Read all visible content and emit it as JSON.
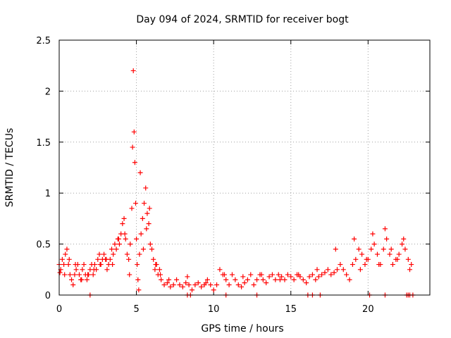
{
  "chart_data": {
    "type": "scatter",
    "title": "Day 094 of 2024, SRMTID for receiver bogt",
    "xlabel": "GPS time / hours",
    "ylabel": "SRMTID / TECUs",
    "xlim": [
      0,
      24
    ],
    "ylim": [
      0,
      2.5
    ],
    "xticks": [
      0,
      5,
      10,
      15,
      20
    ],
    "yticks": [
      0,
      0.5,
      1,
      1.5,
      2,
      2.5
    ],
    "xtick_labels": [
      "0",
      "5",
      "10",
      "15",
      "20"
    ],
    "ytick_labels": [
      "0",
      "0.5",
      "1",
      "1.5",
      "2",
      "2.5"
    ],
    "grid": true,
    "marker": "+",
    "color": "#ff0000",
    "series": [
      {
        "name": "SRMTID",
        "x": [
          0.0,
          0.1,
          0.2,
          0.3,
          0.4,
          0.5,
          0.6,
          0.7,
          0.8,
          0.9,
          1.0,
          1.1,
          1.2,
          1.3,
          1.4,
          1.5,
          1.6,
          1.7,
          1.8,
          1.9,
          2.0,
          2.1,
          2.2,
          2.3,
          2.4,
          2.5,
          2.6,
          2.7,
          2.8,
          2.9,
          3.0,
          3.1,
          3.2,
          3.3,
          3.4,
          3.5,
          3.6,
          3.7,
          3.8,
          3.9,
          4.0,
          4.1,
          4.2,
          4.3,
          4.4,
          4.5,
          4.6,
          4.7,
          4.75,
          4.8,
          4.85,
          4.9,
          4.95,
          5.0,
          5.05,
          5.1,
          5.15,
          5.2,
          5.3,
          5.4,
          5.5,
          5.6,
          5.7,
          5.8,
          5.9,
          6.0,
          6.1,
          6.2,
          6.3,
          6.4,
          6.5,
          6.6,
          6.8,
          7.0,
          7.2,
          7.4,
          7.6,
          7.8,
          8.0,
          8.2,
          8.4,
          8.6,
          8.8,
          9.0,
          9.2,
          9.4,
          9.6,
          9.8,
          10.0,
          10.2,
          10.4,
          10.6,
          10.8,
          11.0,
          11.2,
          11.4,
          11.6,
          11.8,
          12.0,
          12.2,
          12.4,
          12.6,
          12.8,
          13.0,
          13.2,
          13.4,
          13.6,
          13.8,
          14.0,
          14.2,
          14.4,
          14.6,
          14.8,
          15.0,
          15.2,
          15.4,
          15.6,
          15.8,
          16.0,
          16.2,
          16.4,
          16.6,
          16.8,
          17.0,
          17.2,
          17.4,
          17.6,
          17.8,
          18.0,
          18.2,
          18.4,
          18.6,
          18.8,
          19.0,
          19.2,
          19.4,
          19.6,
          19.8,
          20.0,
          20.2,
          20.4,
          20.6,
          20.8,
          21.0,
          21.2,
          21.4,
          21.6,
          21.8,
          22.0,
          22.2,
          22.4,
          22.6,
          22.8,
          0.05,
          0.35,
          0.65,
          1.05,
          1.45,
          1.85,
          2.25,
          2.65,
          3.05,
          3.45,
          3.85,
          4.25,
          4.55,
          5.25,
          5.45,
          5.65,
          5.85,
          6.25,
          6.55,
          7.1,
          8.3,
          9.5,
          10.7,
          11.9,
          13.1,
          14.3,
          15.5,
          16.7,
          17.9,
          19.1,
          19.5,
          19.9,
          20.3,
          20.7,
          21.1,
          21.5,
          21.9,
          22.3,
          22.7,
          2.0,
          8.3,
          8.5,
          10.8,
          12.8,
          16.1,
          16.4,
          16.9,
          20.1,
          21.1,
          22.5,
          22.6,
          22.7,
          22.9
        ],
        "y": [
          0.3,
          0.25,
          0.35,
          0.3,
          0.4,
          0.45,
          0.3,
          0.2,
          0.15,
          0.1,
          0.2,
          0.25,
          0.3,
          0.2,
          0.15,
          0.25,
          0.3,
          0.2,
          0.15,
          0.2,
          0.25,
          0.3,
          0.2,
          0.3,
          0.25,
          0.35,
          0.4,
          0.3,
          0.35,
          0.4,
          0.35,
          0.25,
          0.3,
          0.35,
          0.45,
          0.4,
          0.5,
          0.45,
          0.55,
          0.5,
          0.6,
          0.7,
          0.75,
          0.55,
          0.4,
          0.35,
          0.5,
          0.85,
          1.45,
          2.2,
          1.6,
          1.3,
          0.9,
          0.55,
          0.3,
          0.15,
          0.05,
          0.4,
          0.6,
          0.75,
          0.9,
          1.05,
          0.8,
          0.7,
          0.5,
          0.45,
          0.35,
          0.25,
          0.3,
          0.2,
          0.25,
          0.15,
          0.1,
          0.12,
          0.08,
          0.1,
          0.15,
          0.1,
          0.08,
          0.12,
          0.1,
          0.05,
          0.1,
          0.12,
          0.08,
          0.1,
          0.15,
          0.1,
          0.05,
          0.1,
          0.25,
          0.2,
          0.15,
          0.1,
          0.2,
          0.15,
          0.1,
          0.08,
          0.12,
          0.15,
          0.2,
          0.1,
          0.15,
          0.2,
          0.15,
          0.12,
          0.18,
          0.2,
          0.15,
          0.2,
          0.18,
          0.15,
          0.2,
          0.18,
          0.15,
          0.2,
          0.18,
          0.15,
          0.12,
          0.18,
          0.2,
          0.15,
          0.18,
          0.2,
          0.22,
          0.25,
          0.2,
          0.22,
          0.25,
          0.3,
          0.25,
          0.2,
          0.15,
          0.3,
          0.35,
          0.45,
          0.4,
          0.3,
          0.35,
          0.45,
          0.5,
          0.4,
          0.3,
          0.45,
          0.55,
          0.4,
          0.3,
          0.35,
          0.4,
          0.5,
          0.45,
          0.35,
          0.3,
          0.22,
          0.2,
          0.35,
          0.3,
          0.15,
          0.2,
          0.25,
          0.3,
          0.35,
          0.3,
          0.55,
          0.6,
          0.2,
          1.2,
          0.45,
          0.65,
          0.85,
          0.3,
          0.2,
          0.15,
          0.18,
          0.12,
          0.2,
          0.18,
          0.2,
          0.15,
          0.2,
          0.25,
          0.45,
          0.55,
          0.25,
          0.35,
          0.6,
          0.3,
          0.65,
          0.45,
          0.35,
          0.55,
          0.25,
          0.0,
          0.0,
          0.0,
          0.0,
          0.0,
          0.0,
          0.0,
          0.0,
          0.0,
          0.0,
          0.0,
          0.0,
          0.0,
          0.0
        ]
      }
    ]
  }
}
